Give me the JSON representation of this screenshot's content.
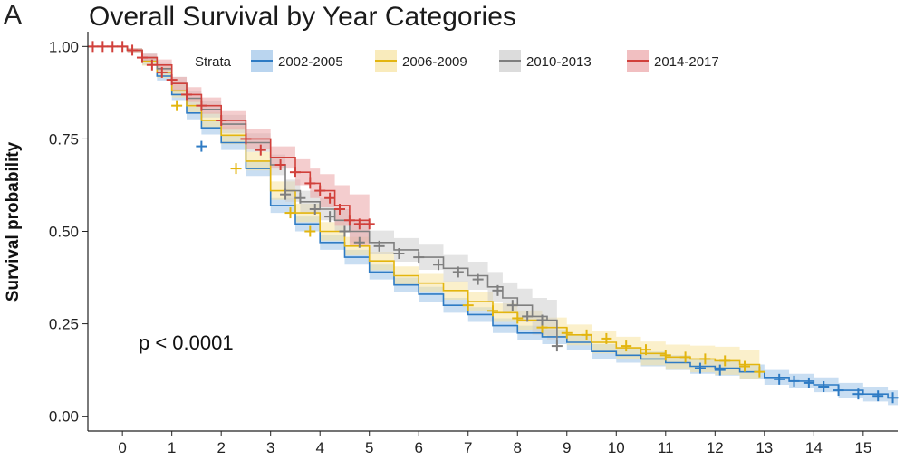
{
  "panel_letter": "A",
  "chart_data": {
    "type": "line",
    "title": "Overall Survival by Year Categories",
    "xlabel": "",
    "ylabel": "Survival probability",
    "xlim": [
      -0.7,
      15.7
    ],
    "ylim": [
      -0.04,
      1.04
    ],
    "xticks": [
      0,
      1,
      2,
      3,
      4,
      5,
      6,
      7,
      8,
      9,
      10,
      11,
      12,
      13,
      14,
      15
    ],
    "yticks": [
      0.0,
      0.25,
      0.5,
      0.75,
      1.0
    ],
    "ytick_labels": [
      "0.00",
      "0.25",
      "0.50",
      "0.75",
      "1.00"
    ],
    "grid": false,
    "legend": {
      "title": "Strata",
      "placement": "top"
    },
    "annotation": "p < 0.0001",
    "series": [
      {
        "name": "2002-2005",
        "color": "#2e7bc4",
        "band_color": "#9dc3e8",
        "points": [
          [
            -0.7,
            1.0
          ],
          [
            0.1,
            0.99
          ],
          [
            0.4,
            0.96
          ],
          [
            0.7,
            0.92
          ],
          [
            1.0,
            0.87
          ],
          [
            1.3,
            0.82
          ],
          [
            1.6,
            0.78
          ],
          [
            2.0,
            0.74
          ],
          [
            2.5,
            0.67
          ],
          [
            3.0,
            0.57
          ],
          [
            3.5,
            0.52
          ],
          [
            4.0,
            0.47
          ],
          [
            4.5,
            0.43
          ],
          [
            5.0,
            0.39
          ],
          [
            5.5,
            0.355
          ],
          [
            6.0,
            0.33
          ],
          [
            6.5,
            0.3
          ],
          [
            7.0,
            0.275
          ],
          [
            7.5,
            0.245
          ],
          [
            8.0,
            0.225
          ],
          [
            8.5,
            0.215
          ],
          [
            9.0,
            0.2
          ],
          [
            9.5,
            0.175
          ],
          [
            10.0,
            0.165
          ],
          [
            10.5,
            0.155
          ],
          [
            11.0,
            0.145
          ],
          [
            11.5,
            0.135
          ],
          [
            12.0,
            0.13
          ],
          [
            12.5,
            0.12
          ],
          [
            13.0,
            0.105
          ],
          [
            13.5,
            0.095
          ],
          [
            14.0,
            0.085
          ],
          [
            14.5,
            0.07
          ],
          [
            15.0,
            0.06
          ],
          [
            15.5,
            0.05
          ],
          [
            15.7,
            0.05
          ]
        ],
        "band_width": [
          0,
          0.005,
          0.01,
          0.012,
          0.015,
          0.017,
          0.018,
          0.02,
          0.02,
          0.02,
          0.02,
          0.02,
          0.02,
          0.02,
          0.02,
          0.02,
          0.02,
          0.02,
          0.02,
          0.02,
          0.02,
          0.02,
          0.02,
          0.02,
          0.02,
          0.02,
          0.02,
          0.02,
          0.02,
          0.02,
          0.02,
          0.02,
          0.02,
          0.02,
          0.02,
          0.02
        ],
        "censor": [
          [
            1.6,
            0.73
          ],
          [
            11.7,
            0.13
          ],
          [
            12.1,
            0.125
          ],
          [
            13.3,
            0.1
          ],
          [
            13.6,
            0.095
          ],
          [
            13.9,
            0.09
          ],
          [
            14.2,
            0.08
          ],
          [
            14.5,
            0.07
          ],
          [
            14.9,
            0.06
          ],
          [
            15.3,
            0.055
          ],
          [
            15.6,
            0.05
          ]
        ]
      },
      {
        "name": "2006-2009",
        "color": "#e3b50f",
        "band_color": "#f7e3a0",
        "points": [
          [
            -0.7,
            1.0
          ],
          [
            0.1,
            0.99
          ],
          [
            0.4,
            0.96
          ],
          [
            0.7,
            0.93
          ],
          [
            1.0,
            0.88
          ],
          [
            1.3,
            0.84
          ],
          [
            1.6,
            0.8
          ],
          [
            2.0,
            0.76
          ],
          [
            2.5,
            0.69
          ],
          [
            3.0,
            0.61
          ],
          [
            3.5,
            0.55
          ],
          [
            4.0,
            0.5
          ],
          [
            4.5,
            0.46
          ],
          [
            5.0,
            0.42
          ],
          [
            5.5,
            0.38
          ],
          [
            6.0,
            0.36
          ],
          [
            6.5,
            0.34
          ],
          [
            7.0,
            0.31
          ],
          [
            7.5,
            0.28
          ],
          [
            8.0,
            0.26
          ],
          [
            8.5,
            0.24
          ],
          [
            9.0,
            0.22
          ],
          [
            9.5,
            0.2
          ],
          [
            10.0,
            0.185
          ],
          [
            10.5,
            0.17
          ],
          [
            11.0,
            0.16
          ],
          [
            11.5,
            0.155
          ],
          [
            12.0,
            0.15
          ],
          [
            12.5,
            0.14
          ],
          [
            12.9,
            0.12
          ]
        ],
        "band_width": [
          0,
          0.006,
          0.012,
          0.015,
          0.018,
          0.02,
          0.022,
          0.024,
          0.025,
          0.025,
          0.025,
          0.025,
          0.025,
          0.025,
          0.025,
          0.025,
          0.025,
          0.025,
          0.025,
          0.026,
          0.027,
          0.028,
          0.03,
          0.03,
          0.032,
          0.034,
          0.036,
          0.038,
          0.04,
          0.04
        ],
        "censor": [
          [
            1.1,
            0.84
          ],
          [
            2.3,
            0.67
          ],
          [
            3.4,
            0.55
          ],
          [
            3.8,
            0.5
          ],
          [
            7.0,
            0.3
          ],
          [
            7.5,
            0.285
          ],
          [
            8.0,
            0.265
          ],
          [
            8.5,
            0.24
          ],
          [
            9.0,
            0.225
          ],
          [
            9.4,
            0.22
          ],
          [
            9.8,
            0.21
          ],
          [
            10.2,
            0.19
          ],
          [
            10.6,
            0.18
          ],
          [
            11.0,
            0.165
          ],
          [
            11.4,
            0.16
          ],
          [
            11.8,
            0.155
          ],
          [
            12.2,
            0.15
          ],
          [
            12.6,
            0.135
          ],
          [
            12.9,
            0.12
          ]
        ]
      },
      {
        "name": "2010-2013",
        "color": "#7f7f7f",
        "band_color": "#cdcdcd",
        "points": [
          [
            -0.7,
            1.0
          ],
          [
            0.1,
            0.99
          ],
          [
            0.4,
            0.97
          ],
          [
            0.7,
            0.94
          ],
          [
            1.0,
            0.9
          ],
          [
            1.3,
            0.86
          ],
          [
            1.6,
            0.83
          ],
          [
            2.0,
            0.79
          ],
          [
            2.5,
            0.74
          ],
          [
            3.0,
            0.68
          ],
          [
            3.3,
            0.61
          ],
          [
            3.6,
            0.58
          ],
          [
            4.0,
            0.56
          ],
          [
            4.3,
            0.53
          ],
          [
            4.6,
            0.5
          ],
          [
            5.0,
            0.47
          ],
          [
            5.5,
            0.45
          ],
          [
            6.0,
            0.43
          ],
          [
            6.5,
            0.4
          ],
          [
            7.0,
            0.38
          ],
          [
            7.4,
            0.35
          ],
          [
            7.7,
            0.32
          ],
          [
            8.0,
            0.3
          ],
          [
            8.3,
            0.27
          ],
          [
            8.6,
            0.26
          ],
          [
            8.8,
            0.19
          ]
        ],
        "band_width": [
          0,
          0.006,
          0.012,
          0.015,
          0.018,
          0.02,
          0.022,
          0.025,
          0.025,
          0.028,
          0.03,
          0.03,
          0.03,
          0.03,
          0.03,
          0.032,
          0.032,
          0.034,
          0.036,
          0.038,
          0.04,
          0.042,
          0.045,
          0.05,
          0.055,
          0.085
        ],
        "censor": [
          [
            3.3,
            0.6
          ],
          [
            3.6,
            0.59
          ],
          [
            3.9,
            0.56
          ],
          [
            4.2,
            0.54
          ],
          [
            4.5,
            0.5
          ],
          [
            4.8,
            0.47
          ],
          [
            5.2,
            0.46
          ],
          [
            5.6,
            0.44
          ],
          [
            6.0,
            0.43
          ],
          [
            6.4,
            0.41
          ],
          [
            6.8,
            0.39
          ],
          [
            7.2,
            0.37
          ],
          [
            7.6,
            0.34
          ],
          [
            7.9,
            0.3
          ],
          [
            8.2,
            0.27
          ],
          [
            8.5,
            0.26
          ],
          [
            8.8,
            0.19
          ]
        ]
      },
      {
        "name": "2014-2017",
        "color": "#d1403b",
        "band_color": "#eba4a6",
        "points": [
          [
            -0.7,
            1.0
          ],
          [
            0.1,
            0.99
          ],
          [
            0.4,
            0.97
          ],
          [
            0.7,
            0.95
          ],
          [
            1.0,
            0.9
          ],
          [
            1.3,
            0.87
          ],
          [
            1.6,
            0.84
          ],
          [
            2.0,
            0.8
          ],
          [
            2.5,
            0.75
          ],
          [
            3.0,
            0.7
          ],
          [
            3.5,
            0.66
          ],
          [
            3.8,
            0.63
          ],
          [
            4.0,
            0.61
          ],
          [
            4.3,
            0.57
          ],
          [
            4.6,
            0.53
          ],
          [
            5.0,
            0.52
          ]
        ],
        "band_width": [
          0,
          0.005,
          0.01,
          0.015,
          0.018,
          0.02,
          0.022,
          0.025,
          0.028,
          0.03,
          0.035,
          0.04,
          0.045,
          0.055,
          0.07,
          0.08
        ],
        "censor": [
          [
            -0.6,
            1.0
          ],
          [
            -0.4,
            1.0
          ],
          [
            -0.2,
            1.0
          ],
          [
            0.0,
            1.0
          ],
          [
            0.2,
            0.99
          ],
          [
            0.4,
            0.97
          ],
          [
            0.6,
            0.95
          ],
          [
            0.8,
            0.93
          ],
          [
            1.0,
            0.91
          ],
          [
            1.3,
            0.87
          ],
          [
            1.6,
            0.84
          ],
          [
            2.0,
            0.8
          ],
          [
            2.5,
            0.75
          ],
          [
            2.8,
            0.72
          ],
          [
            3.2,
            0.68
          ],
          [
            3.5,
            0.66
          ],
          [
            3.8,
            0.63
          ],
          [
            4.0,
            0.61
          ],
          [
            4.2,
            0.59
          ],
          [
            4.4,
            0.56
          ],
          [
            4.6,
            0.53
          ],
          [
            4.8,
            0.52
          ],
          [
            5.0,
            0.52
          ]
        ]
      }
    ]
  }
}
